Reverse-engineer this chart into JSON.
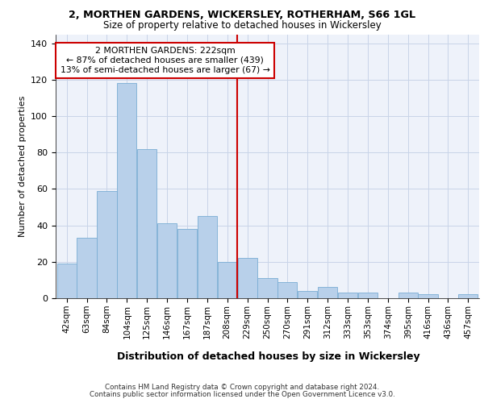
{
  "title1": "2, MORTHEN GARDENS, WICKERSLEY, ROTHERHAM, S66 1GL",
  "title2": "Size of property relative to detached houses in Wickersley",
  "xlabel": "Distribution of detached houses by size in Wickersley",
  "ylabel": "Number of detached properties",
  "bar_labels": [
    "42sqm",
    "63sqm",
    "84sqm",
    "104sqm",
    "125sqm",
    "146sqm",
    "167sqm",
    "187sqm",
    "208sqm",
    "229sqm",
    "250sqm",
    "270sqm",
    "291sqm",
    "312sqm",
    "333sqm",
    "353sqm",
    "374sqm",
    "395sqm",
    "416sqm",
    "436sqm",
    "457sqm"
  ],
  "bar_values": [
    19,
    33,
    59,
    118,
    82,
    41,
    38,
    45,
    20,
    22,
    11,
    9,
    4,
    6,
    3,
    3,
    0,
    3,
    2,
    0,
    2
  ],
  "bar_color": "#b8d0ea",
  "bar_edge_color": "#7aadd4",
  "vline_x": 8.5,
  "vline_color": "#cc0000",
  "annotation_text": "2 MORTHEN GARDENS: 222sqm\n← 87% of detached houses are smaller (439)\n13% of semi-detached houses are larger (67) →",
  "annotation_box_color": "#cc0000",
  "ylim": [
    0,
    145
  ],
  "yticks": [
    0,
    20,
    40,
    60,
    80,
    100,
    120,
    140
  ],
  "grid_color": "#c8d4e8",
  "bg_color": "#eef2fa",
  "footer1": "Contains HM Land Registry data © Crown copyright and database right 2024.",
  "footer2": "Contains public sector information licensed under the Open Government Licence v3.0."
}
